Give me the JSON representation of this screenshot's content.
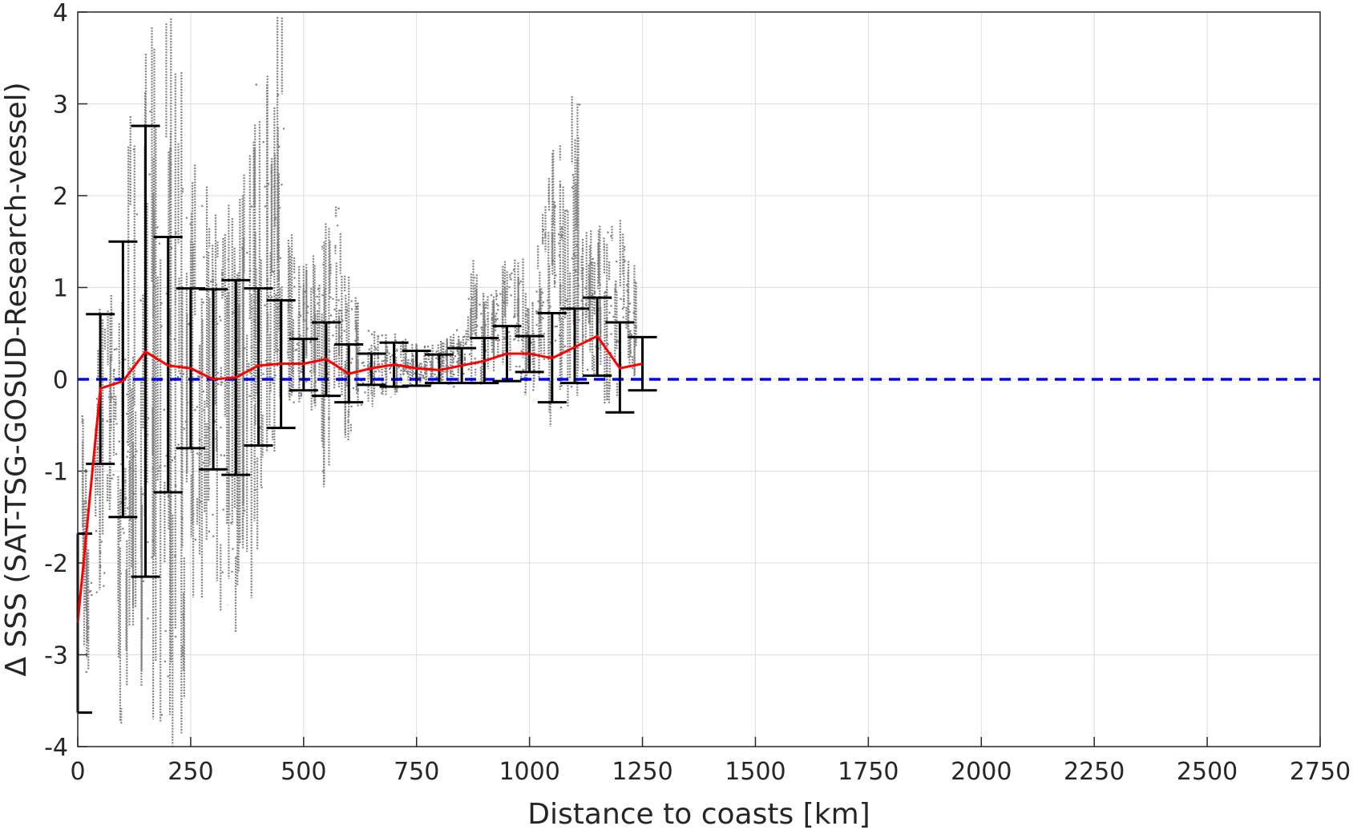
{
  "chart_data": {
    "type": "scatter",
    "title": "",
    "xlabel": "Distance to coasts [km]",
    "ylabel": "Δ SSS (SAT-TSG-GOSUD-Research-vessel)",
    "xlim": [
      0,
      2750
    ],
    "ylim": [
      -4,
      4
    ],
    "xticks": [
      "0",
      "250",
      "500",
      "750",
      "1000",
      "1250",
      "1500",
      "1750",
      "2000",
      "2250",
      "2500",
      "2750"
    ],
    "yticks": [
      "-4",
      "-3",
      "-2",
      "-1",
      "0",
      "1",
      "2",
      "3",
      "4"
    ],
    "grid": true,
    "legend": "none",
    "reference_line": {
      "y": 0,
      "style": "dashed",
      "color": "#0000ff"
    },
    "colors": {
      "scatter": "#808080",
      "mean_line": "#ff0000",
      "error_bars": "#000000",
      "reference": "#0000ff"
    },
    "scatter_columns": [
      {
        "x": 20,
        "y_min": -3.4,
        "y_max": -0.3
      },
      {
        "x": 50,
        "y_min": -2.6,
        "y_max": 0.8
      },
      {
        "x": 75,
        "y_min": -1.5,
        "y_max": 1.0
      },
      {
        "x": 100,
        "y_min": -3.9,
        "y_max": 1.4
      },
      {
        "x": 120,
        "y_min": -3.0,
        "y_max": 3.0
      },
      {
        "x": 150,
        "y_min": -4.0,
        "y_max": 4.0
      },
      {
        "x": 175,
        "y_min": -3.8,
        "y_max": 4.0
      },
      {
        "x": 200,
        "y_min": -4.0,
        "y_max": 4.0
      },
      {
        "x": 225,
        "y_min": -3.9,
        "y_max": 3.5
      },
      {
        "x": 250,
        "y_min": -2.5,
        "y_max": 2.5
      },
      {
        "x": 275,
        "y_min": -2.6,
        "y_max": 2.2
      },
      {
        "x": 300,
        "y_min": -2.5,
        "y_max": 2.0
      },
      {
        "x": 325,
        "y_min": -2.6,
        "y_max": 2.1
      },
      {
        "x": 350,
        "y_min": -2.8,
        "y_max": 2.3
      },
      {
        "x": 375,
        "y_min": -2.4,
        "y_max": 2.6
      },
      {
        "x": 400,
        "y_min": -1.9,
        "y_max": 3.5
      },
      {
        "x": 425,
        "y_min": -0.8,
        "y_max": 3.6
      },
      {
        "x": 445,
        "y_min": -0.6,
        "y_max": 4.0
      },
      {
        "x": 475,
        "y_min": -0.5,
        "y_max": 1.6
      },
      {
        "x": 500,
        "y_min": -0.3,
        "y_max": 1.3
      },
      {
        "x": 525,
        "y_min": -0.4,
        "y_max": 1.4
      },
      {
        "x": 550,
        "y_min": -1.5,
        "y_max": 1.9
      },
      {
        "x": 575,
        "y_min": -0.3,
        "y_max": 2.0
      },
      {
        "x": 600,
        "y_min": -0.7,
        "y_max": 1.2
      },
      {
        "x": 625,
        "y_min": -0.3,
        "y_max": 0.9
      },
      {
        "x": 650,
        "y_min": -0.3,
        "y_max": 0.6
      },
      {
        "x": 675,
        "y_min": -0.2,
        "y_max": 0.5
      },
      {
        "x": 700,
        "y_min": -0.2,
        "y_max": 0.5
      },
      {
        "x": 725,
        "y_min": -0.15,
        "y_max": 0.45
      },
      {
        "x": 750,
        "y_min": -0.1,
        "y_max": 0.4
      },
      {
        "x": 775,
        "y_min": -0.1,
        "y_max": 0.4
      },
      {
        "x": 800,
        "y_min": -0.1,
        "y_max": 0.45
      },
      {
        "x": 825,
        "y_min": -0.1,
        "y_max": 0.5
      },
      {
        "x": 850,
        "y_min": -0.05,
        "y_max": 0.6
      },
      {
        "x": 875,
        "y_min": -0.1,
        "y_max": 1.3
      },
      {
        "x": 900,
        "y_min": -0.1,
        "y_max": 1.1
      },
      {
        "x": 925,
        "y_min": 0.0,
        "y_max": 1.0
      },
      {
        "x": 950,
        "y_min": 0.0,
        "y_max": 1.6
      },
      {
        "x": 975,
        "y_min": 0.0,
        "y_max": 1.4
      },
      {
        "x": 1000,
        "y_min": -0.2,
        "y_max": 1.0
      },
      {
        "x": 1025,
        "y_min": -0.2,
        "y_max": 1.9
      },
      {
        "x": 1050,
        "y_min": -0.6,
        "y_max": 2.7
      },
      {
        "x": 1075,
        "y_min": -0.5,
        "y_max": 2.6
      },
      {
        "x": 1100,
        "y_min": -0.2,
        "y_max": 3.1
      },
      {
        "x": 1125,
        "y_min": -0.1,
        "y_max": 1.7
      },
      {
        "x": 1150,
        "y_min": 0.0,
        "y_max": 1.8
      },
      {
        "x": 1175,
        "y_min": -0.3,
        "y_max": 1.7
      },
      {
        "x": 1200,
        "y_min": -0.4,
        "y_max": 1.8
      },
      {
        "x": 1225,
        "y_min": -0.2,
        "y_max": 1.3
      }
    ],
    "series": [
      {
        "type": "errorbar",
        "x": [
          0,
          50,
          100,
          150,
          200,
          250,
          300,
          350,
          400,
          450,
          500,
          550,
          600,
          650,
          700,
          750,
          800,
          850,
          900,
          950,
          1000,
          1050,
          1100,
          1150,
          1200,
          1250
        ],
        "mean": [
          -2.65,
          -0.1,
          -0.02,
          0.3,
          0.15,
          0.12,
          0.0,
          0.02,
          0.15,
          0.17,
          0.17,
          0.22,
          0.06,
          0.12,
          0.16,
          0.12,
          0.1,
          0.15,
          0.2,
          0.28,
          0.28,
          0.23,
          0.35,
          0.47,
          0.12,
          0.17
        ],
        "upper": [
          -1.68,
          0.71,
          1.5,
          2.76,
          1.55,
          0.99,
          0.98,
          1.08,
          0.99,
          0.86,
          0.44,
          0.62,
          0.38,
          0.28,
          0.4,
          0.31,
          0.27,
          0.34,
          0.45,
          0.58,
          0.47,
          0.72,
          0.77,
          0.89,
          0.62,
          0.46
        ],
        "lower": [
          -3.63,
          -0.92,
          -1.5,
          -2.15,
          -1.23,
          -0.75,
          -0.98,
          -1.04,
          -0.72,
          -0.53,
          -0.12,
          -0.18,
          -0.25,
          -0.06,
          -0.08,
          -0.07,
          -0.04,
          -0.04,
          -0.04,
          -0.02,
          0.08,
          -0.25,
          -0.04,
          0.04,
          -0.36,
          -0.12
        ]
      }
    ]
  }
}
